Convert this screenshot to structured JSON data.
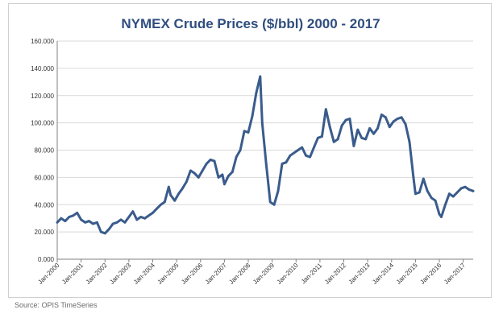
{
  "colors": {
    "series": "#3a5c8c",
    "title": "#2f4e7e",
    "axis": "#808080",
    "gridline": "#d9d9d9",
    "tick_text": "#333333",
    "source_text": "#6b6b6b"
  },
  "source": "Source: OPIS TimeSeries",
  "chart_data": {
    "type": "line",
    "title": "NYMEX Crude Prices ($/bbl) 2000 - 2017",
    "xlabel": "",
    "ylabel": "",
    "grid": true,
    "legend": "none",
    "ylim": [
      0,
      160
    ],
    "yticks": [
      0,
      20,
      40,
      60,
      80,
      100,
      120,
      140,
      160
    ],
    "ytick_labels": [
      "0.000",
      "20.000",
      "40.000",
      "60.000",
      "80.000",
      "100.000",
      "120.000",
      "140.000",
      "160.000"
    ],
    "xlim": [
      "Jan-2000",
      "Jun-2017"
    ],
    "xtick_labels": [
      "Jan-2000",
      "Jan-2001",
      "Jan-2002",
      "Jan-2003",
      "Jan-2004",
      "Jan-2005",
      "Jan-2006",
      "Jan-2007",
      "Jan-2008",
      "Jan-2009",
      "Jan-2010",
      "Jan-2011",
      "Jan-2012",
      "Jan-2013",
      "Jan-2014",
      "Jan-2015",
      "Jan-2016",
      "Jan-2017"
    ],
    "series": [
      {
        "x": [
          "Jan-2000",
          "Mar-2000",
          "May-2000",
          "Jul-2000",
          "Sep-2000",
          "Nov-2000",
          "Jan-2001",
          "Mar-2001",
          "May-2001",
          "Jul-2001",
          "Sep-2001",
          "Nov-2001",
          "Jan-2002",
          "Mar-2002",
          "May-2002",
          "Jul-2002",
          "Sep-2002",
          "Nov-2002",
          "Jan-2003",
          "Mar-2003",
          "May-2003",
          "Jul-2003",
          "Sep-2003",
          "Nov-2003",
          "Jan-2004",
          "Mar-2004",
          "May-2004",
          "Jul-2004",
          "Sep-2004",
          "Oct-2004",
          "Dec-2004",
          "Feb-2005",
          "Apr-2005",
          "Jun-2005",
          "Aug-2005",
          "Oct-2005",
          "Dec-2005",
          "Feb-2006",
          "Apr-2006",
          "Jun-2006",
          "Aug-2006",
          "Oct-2006",
          "Dec-2006",
          "Jan-2007",
          "Mar-2007",
          "May-2007",
          "Jul-2007",
          "Sep-2007",
          "Nov-2007",
          "Jan-2008",
          "Mar-2008",
          "May-2008",
          "Jul-2008",
          "Aug-2008",
          "Oct-2008",
          "Dec-2008",
          "Feb-2009",
          "Apr-2009",
          "Jun-2009",
          "Aug-2009",
          "Oct-2009",
          "Dec-2009",
          "Feb-2010",
          "Apr-2010",
          "Jun-2010",
          "Aug-2010",
          "Oct-2010",
          "Dec-2010",
          "Feb-2011",
          "Apr-2011",
          "Jun-2011",
          "Aug-2011",
          "Oct-2011",
          "Dec-2011",
          "Feb-2012",
          "Apr-2012",
          "Jun-2012",
          "Aug-2012",
          "Oct-2012",
          "Dec-2012",
          "Feb-2013",
          "Apr-2013",
          "Jun-2013",
          "Aug-2013",
          "Oct-2013",
          "Dec-2013",
          "Feb-2014",
          "Apr-2014",
          "Jun-2014",
          "Aug-2014",
          "Oct-2014",
          "Dec-2014",
          "Jan-2015",
          "Mar-2015",
          "May-2015",
          "Jul-2015",
          "Sep-2015",
          "Nov-2015",
          "Jan-2016",
          "Feb-2016",
          "Apr-2016",
          "Jun-2016",
          "Aug-2016",
          "Oct-2016",
          "Dec-2016",
          "Feb-2017",
          "Apr-2017",
          "Jun-2017"
        ],
        "y": [
          27,
          30,
          28,
          31,
          32,
          34,
          29,
          27,
          28,
          26,
          27,
          20,
          19,
          22,
          26,
          27,
          29,
          27,
          31,
          35,
          29,
          31,
          30,
          32,
          34,
          37,
          40,
          42,
          53,
          47,
          43,
          48,
          52,
          57,
          65,
          63,
          60,
          65,
          70,
          73,
          72,
          60,
          62,
          55,
          61,
          64,
          75,
          80,
          94,
          93,
          105,
          122,
          134,
          100,
          70,
          42,
          40,
          50,
          70,
          71,
          76,
          78,
          80,
          82,
          76,
          75,
          82,
          89,
          90,
          110,
          97,
          86,
          88,
          98,
          102,
          103,
          83,
          95,
          89,
          88,
          96,
          92,
          96,
          106,
          104,
          97,
          101,
          103,
          104,
          99,
          86,
          60,
          48,
          49,
          59,
          50,
          45,
          43,
          33,
          31,
          40,
          48,
          46,
          49,
          52,
          53,
          51,
          50
        ]
      }
    ]
  }
}
